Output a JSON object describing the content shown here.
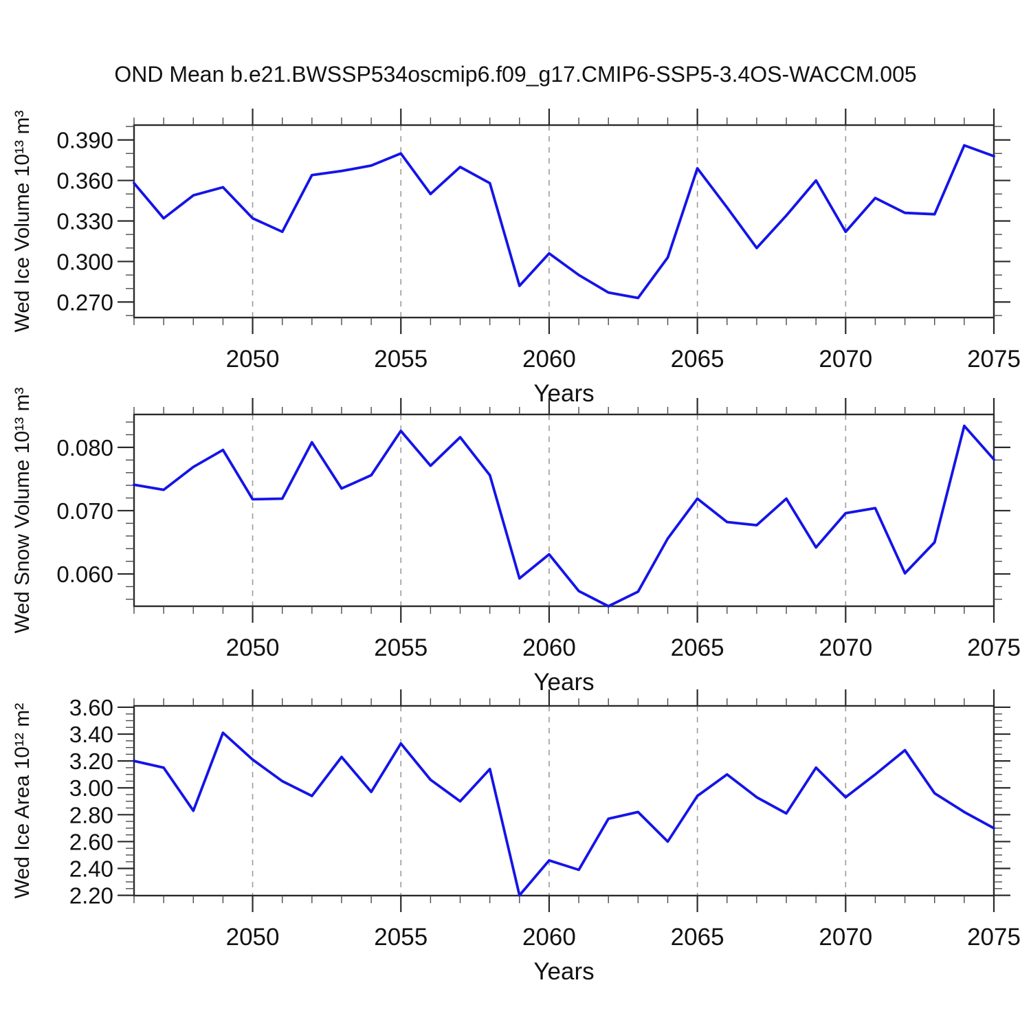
{
  "title": "OND Mean b.e21.BWSSP534oscmip6.f09_g17.CMIP6-SSP5-3.4OS-WACCM.005",
  "colors": {
    "line": "#1414e8",
    "axis": "#2a2a2a",
    "minor_tick": "#4a4a4a",
    "grid": "#9b9b9b",
    "background": "#ffffff"
  },
  "xlabel": "Years",
  "xtick_labels": [
    "2050",
    "2055",
    "2060",
    "2065",
    "2070",
    "2075"
  ],
  "years": [
    2046,
    2047,
    2048,
    2049,
    2050,
    2051,
    2052,
    2053,
    2054,
    2055,
    2056,
    2057,
    2058,
    2059,
    2060,
    2061,
    2062,
    2063,
    2064,
    2065,
    2066,
    2067,
    2068,
    2069,
    2070,
    2071,
    2072,
    2073,
    2074,
    2075
  ],
  "chart_data": [
    {
      "type": "line",
      "name": "wed-ice-volume",
      "ylabel": "Wed Ice Volume 10¹³ m³",
      "xlabel": "Years",
      "x_range": [
        2046,
        2075
      ],
      "ylim": [
        0.2585,
        0.401
      ],
      "yticks": [
        0.27,
        0.3,
        0.33,
        0.36,
        0.39
      ],
      "ytick_labels": [
        "0.270",
        "0.300",
        "0.330",
        "0.360",
        "0.390"
      ],
      "y_minor_step": 0.01,
      "grid_years": [
        2050,
        2055,
        2060,
        2065,
        2070
      ],
      "values": [
        0.358,
        0.332,
        0.349,
        0.355,
        0.332,
        0.322,
        0.364,
        0.367,
        0.371,
        0.38,
        0.35,
        0.37,
        0.358,
        0.282,
        0.306,
        0.29,
        0.277,
        0.273,
        0.303,
        0.369,
        0.34,
        0.31,
        0.334,
        0.36,
        0.322,
        0.347,
        0.336,
        0.335,
        0.386,
        0.378
      ]
    },
    {
      "type": "line",
      "name": "wed-snow-volume",
      "ylabel": "Wed Snow Volume 10¹³ m³",
      "xlabel": "Years",
      "x_range": [
        2046,
        2075
      ],
      "ylim": [
        0.0549,
        0.0852
      ],
      "yticks": [
        0.06,
        0.07,
        0.08
      ],
      "ytick_labels": [
        "0.060",
        "0.070",
        "0.080"
      ],
      "y_minor_step": 0.002,
      "grid_years": [
        2050,
        2055,
        2060,
        2065,
        2070
      ],
      "values": [
        0.0741,
        0.0733,
        0.0769,
        0.0796,
        0.0718,
        0.0719,
        0.0808,
        0.0735,
        0.0756,
        0.0826,
        0.0771,
        0.0816,
        0.0756,
        0.0593,
        0.0631,
        0.0573,
        0.0549,
        0.0572,
        0.0656,
        0.0719,
        0.0682,
        0.0677,
        0.0719,
        0.0642,
        0.0696,
        0.0704,
        0.0601,
        0.065,
        0.0834,
        0.0781
      ]
    },
    {
      "type": "line",
      "name": "wed-ice-area",
      "ylabel": "Wed Ice Area 10¹² m²",
      "xlabel": "Years",
      "x_range": [
        2046,
        2075
      ],
      "ylim": [
        2.198,
        3.61
      ],
      "yticks": [
        2.2,
        2.4,
        2.6,
        2.8,
        3.0,
        3.2,
        3.4,
        3.6
      ],
      "ytick_labels": [
        "2.20",
        "2.40",
        "2.60",
        "2.80",
        "3.00",
        "3.20",
        "3.40",
        "3.60"
      ],
      "y_minor_step": 0.05,
      "grid_years": [
        2050,
        2055,
        2060,
        2065,
        2070
      ],
      "values": [
        3.2,
        3.15,
        2.83,
        3.41,
        3.21,
        3.05,
        2.94,
        3.23,
        2.97,
        3.33,
        3.06,
        2.9,
        3.14,
        2.2,
        2.46,
        2.39,
        2.77,
        2.82,
        2.6,
        2.94,
        3.1,
        2.93,
        2.81,
        3.15,
        2.93,
        3.1,
        3.28,
        2.96,
        2.82,
        2.7
      ]
    }
  ]
}
